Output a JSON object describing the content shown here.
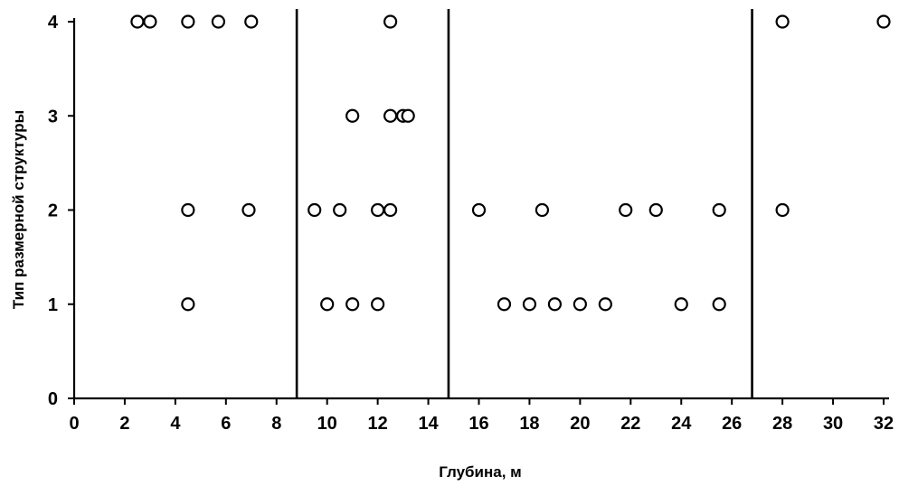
{
  "chart_data": {
    "type": "scatter",
    "title": "",
    "xlabel": "Глубина, м",
    "ylabel": "Тип размерной структуры",
    "xlim": [
      0,
      32
    ],
    "ylim": [
      0,
      4
    ],
    "x_ticks": [
      0,
      2,
      4,
      6,
      8,
      10,
      12,
      14,
      16,
      18,
      20,
      22,
      24,
      26,
      28,
      30,
      32
    ],
    "y_ticks": [
      0,
      1,
      2,
      3,
      4
    ],
    "grid": false,
    "marker": "open-circle",
    "vertical_lines_x": [
      8.8,
      14.8,
      26.8
    ],
    "series": [
      {
        "points": [
          {
            "x": 2.5,
            "y": 4
          },
          {
            "x": 3.0,
            "y": 4
          },
          {
            "x": 4.5,
            "y": 4
          },
          {
            "x": 5.7,
            "y": 4
          },
          {
            "x": 7.0,
            "y": 4
          },
          {
            "x": 12.5,
            "y": 4
          },
          {
            "x": 28.0,
            "y": 4
          },
          {
            "x": 32.0,
            "y": 4
          },
          {
            "x": 11.0,
            "y": 3
          },
          {
            "x": 12.5,
            "y": 3
          },
          {
            "x": 13.0,
            "y": 3
          },
          {
            "x": 13.2,
            "y": 3
          },
          {
            "x": 4.5,
            "y": 2
          },
          {
            "x": 6.9,
            "y": 2
          },
          {
            "x": 9.5,
            "y": 2
          },
          {
            "x": 10.5,
            "y": 2
          },
          {
            "x": 12.0,
            "y": 2
          },
          {
            "x": 12.5,
            "y": 2
          },
          {
            "x": 16.0,
            "y": 2
          },
          {
            "x": 18.5,
            "y": 2
          },
          {
            "x": 21.8,
            "y": 2
          },
          {
            "x": 23.0,
            "y": 2
          },
          {
            "x": 25.5,
            "y": 2
          },
          {
            "x": 28.0,
            "y": 2
          },
          {
            "x": 4.5,
            "y": 1
          },
          {
            "x": 10.0,
            "y": 1
          },
          {
            "x": 11.0,
            "y": 1
          },
          {
            "x": 12.0,
            "y": 1
          },
          {
            "x": 17.0,
            "y": 1
          },
          {
            "x": 18.0,
            "y": 1
          },
          {
            "x": 19.0,
            "y": 1
          },
          {
            "x": 20.0,
            "y": 1
          },
          {
            "x": 21.0,
            "y": 1
          },
          {
            "x": 24.0,
            "y": 1
          },
          {
            "x": 25.5,
            "y": 1
          }
        ]
      }
    ]
  }
}
